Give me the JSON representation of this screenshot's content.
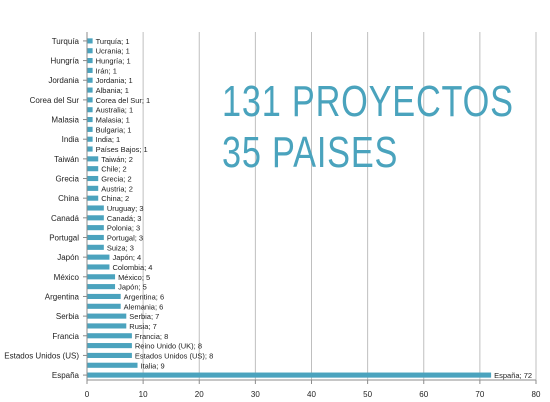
{
  "headline": {
    "line1": "131 PROYECTOS",
    "line2": "35 PAISES"
  },
  "colors": {
    "bar": "#4ba3be",
    "grid": "#bfbfbf",
    "axis": "#8c8c8c",
    "text": "#222222",
    "headline": "#4aa3bd"
  },
  "chart_data": {
    "type": "bar",
    "orientation": "horizontal",
    "title": "",
    "xlabel": "",
    "ylabel": "",
    "xlim": [
      0,
      80
    ],
    "xticks": [
      0,
      10,
      20,
      30,
      40,
      50,
      60,
      70,
      80
    ],
    "grid": true,
    "categories": [
      "Turquía",
      "Ucrania",
      "Hungría",
      "Irán",
      "Jordania",
      "Albania",
      "Corea del Sur",
      "Australia",
      "Malasia",
      "Bulgaria",
      "India",
      "Países Bajos",
      "Taiwán",
      "Chile",
      "Grecia",
      "Austria",
      "China",
      "Uruguay",
      "Canadá",
      "Polonia",
      "Portugal",
      "Suiza",
      "Japón",
      "Colombia",
      "México",
      "Japón",
      "Argentina",
      "Alemania",
      "Serbia",
      "Rusia",
      "Francia",
      "Reino Unido (UK)",
      "Estados Unidos (US)",
      "Italia",
      "España"
    ],
    "values": [
      1,
      1,
      1,
      1,
      1,
      1,
      1,
      1,
      1,
      1,
      1,
      1,
      2,
      2,
      2,
      2,
      2,
      3,
      3,
      3,
      3,
      3,
      4,
      4,
      5,
      5,
      6,
      6,
      7,
      7,
      8,
      8,
      8,
      9,
      72
    ],
    "data_labels": [
      "Turquía; 1",
      "Ucrania; 1",
      "Hungría; 1",
      "Irán; 1",
      "Jordania; 1",
      "Albania; 1",
      "Corea del Sur; 1",
      "Australia; 1",
      "Malasia; 1",
      "Bulgaria; 1",
      "India; 1",
      "Países Bajos; 1",
      "Taiwán; 2",
      "Chile; 2",
      "Grecia; 2",
      "Austria; 2",
      "China; 2",
      "Uruguay; 3",
      "Canadá; 3",
      "Polonia; 3",
      "Portugal; 3",
      "Suiza; 3",
      "Japón; 4",
      "Colombia; 4",
      "México; 5",
      "Japón; 5",
      "Argentina; 6",
      "Alemania; 6",
      "Serbia; 7",
      "Rusia; 7",
      "Francia; 8",
      "Reino Unido (UK); 8",
      "Estados Unidos (US); 8",
      "Italia; 9",
      "España; 72"
    ],
    "ytick_labels": [
      "Turquía",
      "Hungría",
      "Jordania",
      "Corea del Sur",
      "Malasia",
      "India",
      "Taiwán",
      "Grecia",
      "China",
      "Canadá",
      "Portugal",
      "Japón",
      "México",
      "Argentina",
      "Serbia",
      "Francia",
      "Estados Unidos (US)",
      "España"
    ],
    "ytick_indices": [
      0,
      2,
      4,
      6,
      8,
      10,
      12,
      14,
      16,
      18,
      20,
      22,
      24,
      26,
      28,
      30,
      32,
      34
    ]
  }
}
